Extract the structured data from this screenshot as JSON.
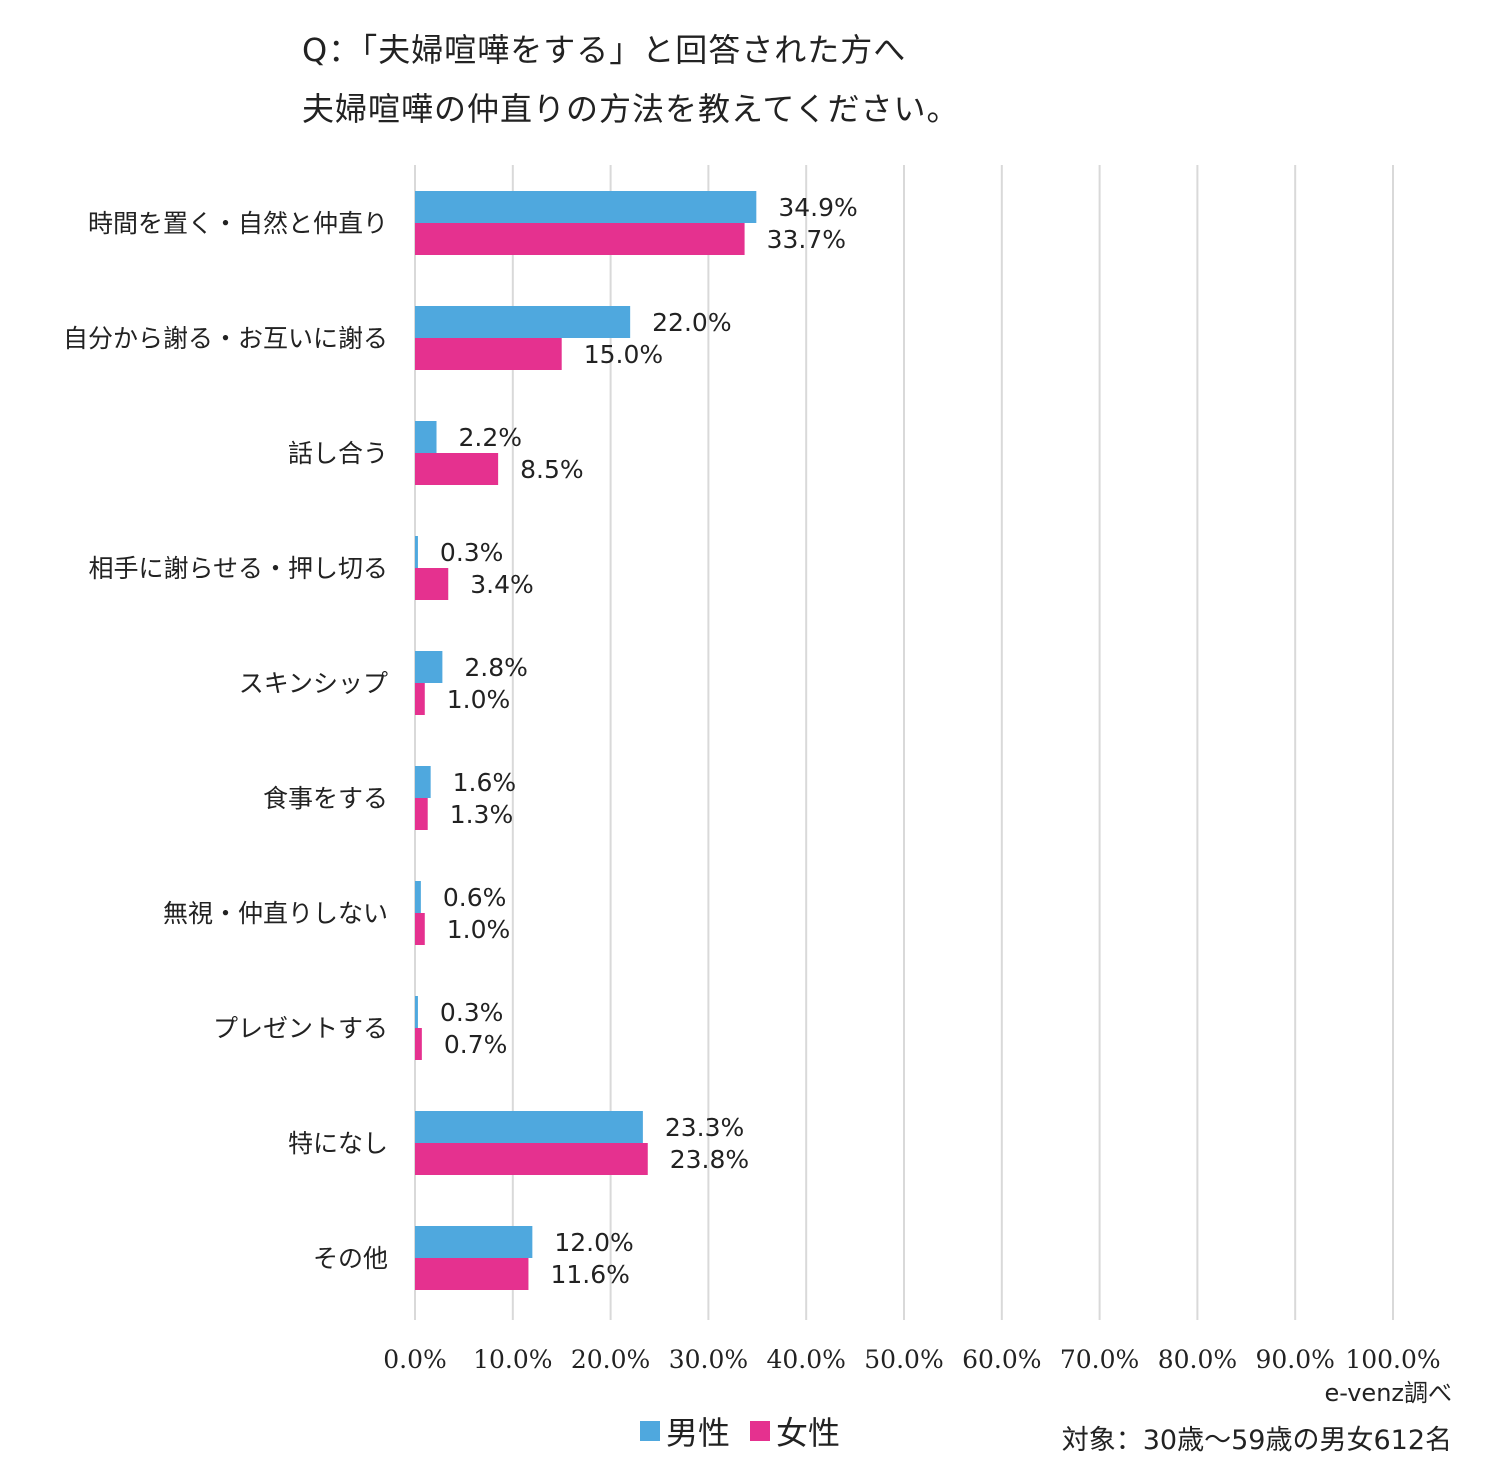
{
  "chart_data": {
    "type": "bar",
    "orientation": "horizontal",
    "title_lines": [
      "Q：「夫婦喧嘩をする」と回答された方へ",
      "夫婦喧嘩の仲直りの方法を教えてください。"
    ],
    "categories": [
      "時間を置く・自然と仲直り",
      "自分から謝る・お互いに謝る",
      "話し合う",
      "相手に謝らせる・押し切る",
      "スキンシップ",
      "食事をする",
      "無視・仲直りしない",
      "プレゼントする",
      "特になし",
      "その他"
    ],
    "series": [
      {
        "name": "男性",
        "color": "#4fa8de",
        "values": [
          34.9,
          22.0,
          2.2,
          0.3,
          2.8,
          1.6,
          0.6,
          0.3,
          23.3,
          12.0
        ]
      },
      {
        "name": "女性",
        "color": "#e5318f",
        "values": [
          33.7,
          15.0,
          8.5,
          3.4,
          1.0,
          1.3,
          1.0,
          0.7,
          23.8,
          11.6
        ]
      }
    ],
    "value_labels": [
      [
        "34.9%",
        "22.0%",
        "2.2%",
        "0.3%",
        "2.8%",
        "1.6%",
        "0.6%",
        "0.3%",
        "23.3%",
        "12.0%"
      ],
      [
        "33.7%",
        "15.0%",
        "8.5%",
        "3.4%",
        "1.0%",
        "1.3%",
        "1.0%",
        "0.7%",
        "23.8%",
        "11.6%"
      ]
    ],
    "xlim": [
      0,
      100
    ],
    "xticks": [
      0,
      10,
      20,
      30,
      40,
      50,
      60,
      70,
      80,
      90,
      100
    ],
    "xtick_labels": [
      "0.0%",
      "10.0%",
      "20.0%",
      "30.0%",
      "40.0%",
      "50.0%",
      "60.0%",
      "70.0%",
      "80.0%",
      "90.0%",
      "100.0%"
    ],
    "grid": true,
    "legend_position": "bottom-center"
  },
  "footer": {
    "source": "e-venz調べ",
    "target": "対象：30歳～59歳の男女612名"
  }
}
